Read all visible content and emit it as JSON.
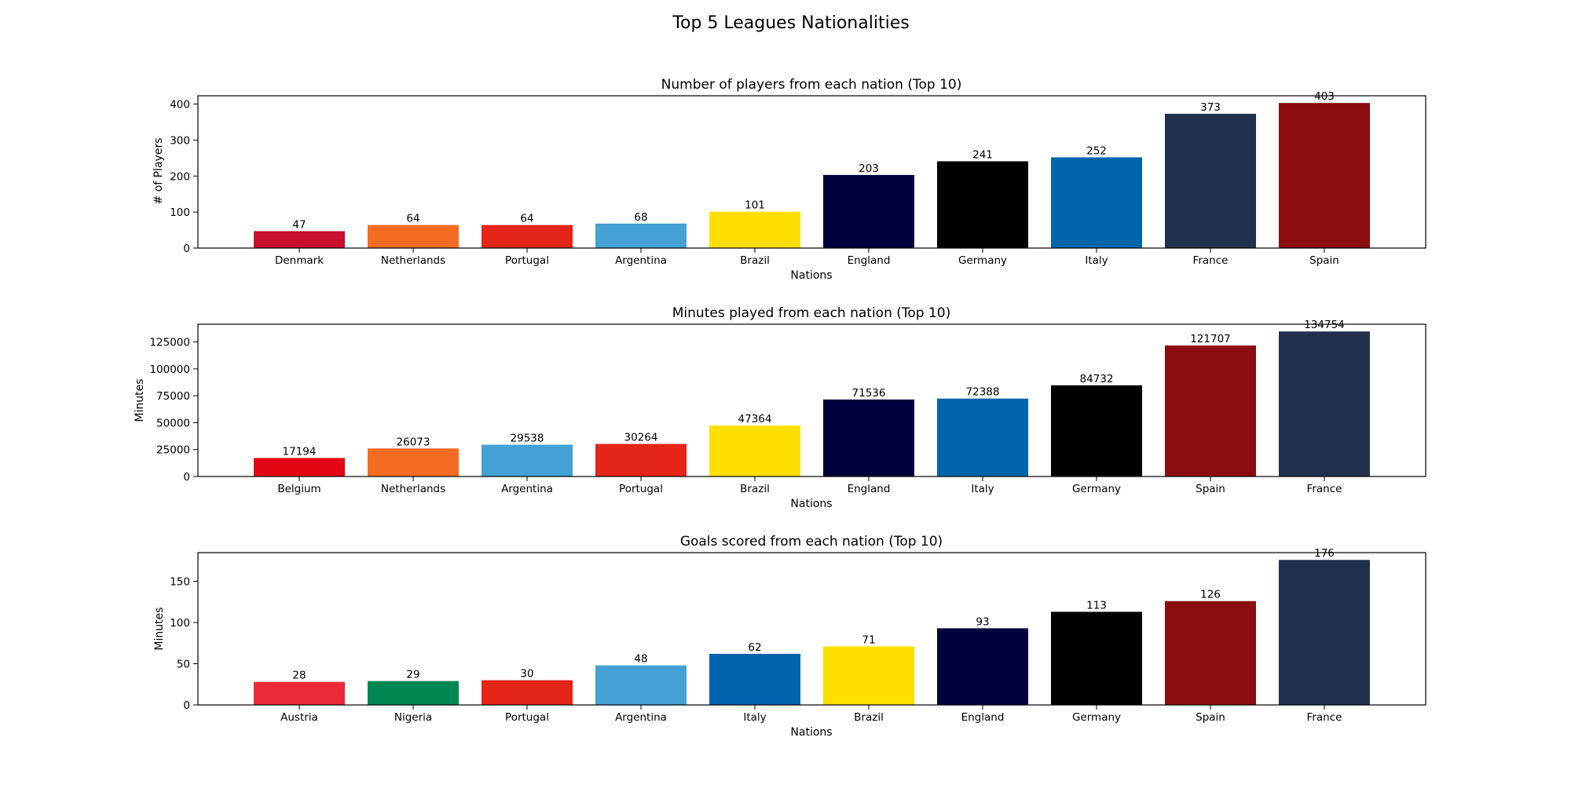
{
  "figure": {
    "title": "Top 5 Leagues Nationalities"
  },
  "chart_data": [
    {
      "type": "bar",
      "title": "Number of players from each nation (Top 10)",
      "xlabel": "Nations",
      "ylabel": "# of Players",
      "ylim": [
        0,
        423
      ],
      "yticks": [
        0,
        100,
        200,
        300,
        400
      ],
      "categories": [
        "Denmark",
        "Netherlands",
        "Portugal",
        "Argentina",
        "Brazil",
        "England",
        "Germany",
        "Italy",
        "France",
        "Spain"
      ],
      "values": [
        47,
        64,
        64,
        68,
        101,
        203,
        241,
        252,
        373,
        403
      ],
      "colors": [
        "#c8102e",
        "#f36c21",
        "#e42518",
        "#43a1d5",
        "#ffdf00",
        "#00003c",
        "#000000",
        "#0064aa",
        "#21304d",
        "#8b0d11"
      ],
      "grid": false,
      "legend": "none"
    },
    {
      "type": "bar",
      "title": "Minutes played from each nation (Top 10)",
      "xlabel": "Nations",
      "ylabel": "Minutes",
      "ylim": [
        0,
        141492
      ],
      "yticks": [
        0,
        25000,
        50000,
        75000,
        100000,
        125000
      ],
      "categories": [
        "Belgium",
        "Netherlands",
        "Argentina",
        "Portugal",
        "Brazil",
        "England",
        "Italy",
        "Germany",
        "Spain",
        "France"
      ],
      "values": [
        17194,
        26073,
        29538,
        30264,
        47364,
        71536,
        72388,
        84732,
        121707,
        134754
      ],
      "colors": [
        "#e30613",
        "#f36c21",
        "#43a1d5",
        "#e42518",
        "#ffdf00",
        "#00003c",
        "#0064aa",
        "#000000",
        "#8b0d11",
        "#21304d"
      ],
      "grid": false,
      "legend": "none"
    },
    {
      "type": "bar",
      "title": "Goals scored from each nation (Top 10)",
      "xlabel": "Nations",
      "ylabel": "Minutes",
      "ylim": [
        0,
        184.8
      ],
      "yticks": [
        0,
        50,
        100,
        150
      ],
      "categories": [
        "Austria",
        "Nigeria",
        "Portugal",
        "Argentina",
        "Italy",
        "Brazil",
        "England",
        "Germany",
        "Spain",
        "France"
      ],
      "values": [
        28,
        29,
        30,
        48,
        62,
        71,
        93,
        113,
        126,
        176
      ],
      "colors": [
        "#ed2939",
        "#008751",
        "#e42518",
        "#43a1d5",
        "#0064aa",
        "#ffdf00",
        "#00003c",
        "#000000",
        "#8b0d11",
        "#21304d"
      ],
      "grid": false,
      "legend": "none"
    }
  ]
}
